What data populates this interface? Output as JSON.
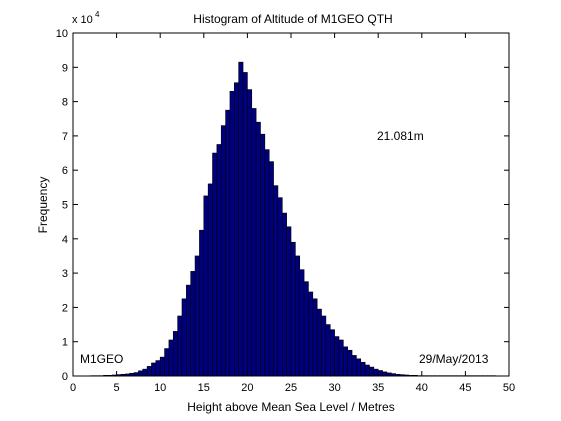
{
  "chart_data": {
    "type": "bar",
    "title": "Histogram of Altitude of M1GEO QTH",
    "xlabel": "Height above Mean Sea Level / Metres",
    "ylabel": "Frequency",
    "y_multiplier_label": {
      "base": "x 10",
      "exponent": "4"
    },
    "xlim": [
      0,
      50
    ],
    "ylim": [
      0,
      10
    ],
    "x_ticks": [
      "0",
      "5",
      "10",
      "15",
      "20",
      "25",
      "30",
      "35",
      "40",
      "45",
      "50"
    ],
    "y_ticks": [
      "0",
      "1",
      "2",
      "3",
      "4",
      "5",
      "6",
      "7",
      "8",
      "9",
      "10"
    ],
    "grid": false,
    "bar_color": "#00007f",
    "bar_edge_color": "#000000",
    "annotations": {
      "peak": "21.081m",
      "callsign": "M1GEO",
      "date": "29/May/2013"
    },
    "bin_start": 2.0,
    "bin_width": 0.5,
    "values": [
      0.01,
      0.01,
      0.01,
      0.02,
      0.02,
      0.03,
      0.04,
      0.05,
      0.06,
      0.08,
      0.1,
      0.15,
      0.2,
      0.28,
      0.38,
      0.45,
      0.55,
      0.8,
      1.05,
      1.3,
      1.75,
      2.25,
      2.65,
      3.05,
      3.5,
      4.25,
      5.25,
      5.6,
      6.5,
      6.75,
      7.3,
      7.75,
      8.3,
      8.55,
      9.15,
      8.85,
      8.35,
      7.8,
      7.4,
      7.05,
      6.6,
      6.25,
      5.55,
      5.2,
      4.75,
      4.35,
      3.9,
      3.5,
      3.1,
      2.75,
      2.45,
      2.25,
      1.95,
      1.75,
      1.5,
      1.35,
      1.15,
      1.05,
      0.85,
      0.75,
      0.6,
      0.5,
      0.4,
      0.32,
      0.26,
      0.2,
      0.16,
      0.12,
      0.09,
      0.07,
      0.05,
      0.04,
      0.03,
      0.02,
      0.02,
      0.01,
      0.01,
      0.01,
      0.01,
      0.01,
      0.01,
      0.01,
      0.01,
      0.01,
      0.01,
      0.01,
      0.01,
      0.01,
      0.01,
      0.01,
      0.01,
      0.01,
      0.01
    ]
  }
}
